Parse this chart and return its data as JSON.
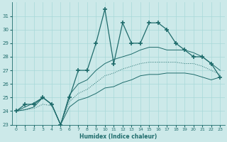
{
  "xlabel": "Humidex (Indice chaleur)",
  "x": [
    0,
    1,
    2,
    3,
    4,
    5,
    6,
    7,
    8,
    9,
    10,
    11,
    12,
    13,
    14,
    15,
    16,
    17,
    18,
    19,
    20,
    21,
    22,
    23
  ],
  "y_main": [
    24,
    24.5,
    24.5,
    25,
    24.5,
    23,
    25,
    27,
    27,
    29,
    31.5,
    27.5,
    30.5,
    29,
    29,
    30.5,
    30.5,
    30,
    29,
    28.5,
    28,
    28,
    27.5,
    26.5
  ],
  "y_upper": [
    24,
    24.3,
    24.6,
    25,
    24.5,
    23,
    25.2,
    26,
    26.3,
    27,
    27.5,
    27.8,
    28,
    28.2,
    28.5,
    28.7,
    28.7,
    28.5,
    28.5,
    28.5,
    28.3,
    28.0,
    27.5,
    27.0
  ],
  "y_lower": [
    24,
    24.1,
    24.3,
    25,
    24.5,
    23,
    24.3,
    24.8,
    25,
    25.3,
    25.7,
    25.8,
    26.1,
    26.3,
    26.6,
    26.7,
    26.7,
    26.8,
    26.8,
    26.8,
    26.7,
    26.5,
    26.3,
    26.5
  ],
  "y_regression": [
    24,
    24.1,
    24.2,
    24.5,
    24.4,
    23,
    24.7,
    25.3,
    25.6,
    26.1,
    26.6,
    26.8,
    27.1,
    27.3,
    27.5,
    27.6,
    27.6,
    27.6,
    27.6,
    27.5,
    27.5,
    27.3,
    27.0,
    26.7
  ],
  "bg_color": "#cce9e9",
  "line_color": "#1e6b6b",
  "grid_color": "#a8d8d8",
  "ylim": [
    23,
    32
  ],
  "xlim": [
    -0.5,
    23.5
  ],
  "yticks": [
    23,
    24,
    25,
    26,
    27,
    28,
    29,
    30,
    31
  ],
  "xticks": [
    0,
    1,
    2,
    3,
    4,
    5,
    6,
    7,
    8,
    9,
    10,
    11,
    12,
    13,
    14,
    15,
    16,
    17,
    18,
    19,
    20,
    21,
    22,
    23
  ]
}
